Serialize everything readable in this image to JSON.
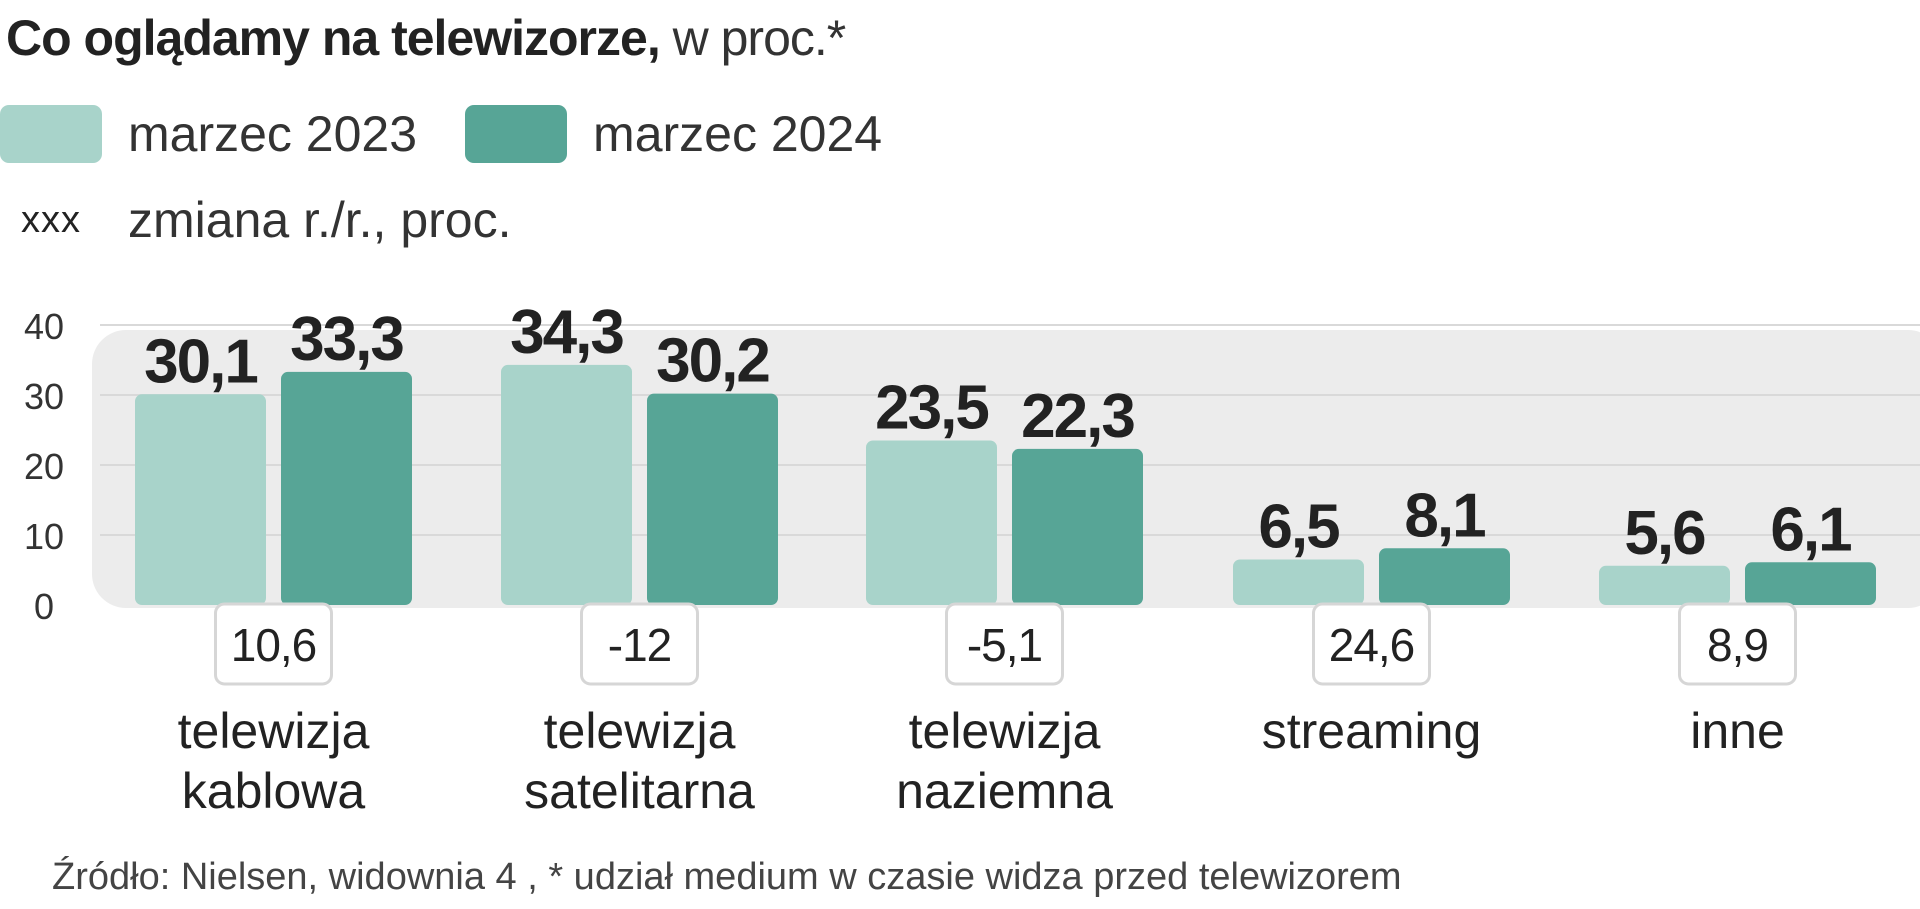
{
  "title": {
    "bold": "Co oglądamy na telewizorze,",
    "rest": " w proc.*"
  },
  "legend": {
    "series_a": "marzec 2023",
    "series_b": "marzec 2024",
    "change_marker": "xxx",
    "change_label": "zmiana r./r., proc."
  },
  "colors": {
    "series_a": "#a8d3ca",
    "series_b": "#57a596",
    "panel": "#ececec",
    "grid": "#d9d9d9"
  },
  "source": "Źródło: Nielsen, widownia 4 , * udział medium w czasie widza przed telewizorem",
  "chart_data": {
    "type": "bar",
    "ylim": [
      0,
      40
    ],
    "yticks": [
      "0",
      "10",
      "20",
      "30",
      "40"
    ],
    "categories": [
      [
        "telewizja",
        "kablowa"
      ],
      [
        "telewizja",
        "satelitarna"
      ],
      [
        "telewizja",
        "naziemna"
      ],
      [
        "streaming"
      ],
      [
        "inne"
      ]
    ],
    "series": [
      {
        "name": "marzec 2023",
        "values": [
          30.1,
          34.3,
          23.5,
          6.5,
          5.6
        ],
        "labels": [
          "30,1",
          "34,3",
          "23,5",
          "6,5",
          "5,6"
        ]
      },
      {
        "name": "marzec 2024",
        "values": [
          33.3,
          30.2,
          22.3,
          8.1,
          6.1
        ],
        "labels": [
          "33,3",
          "30,2",
          "22,3",
          "8,1",
          "6,1"
        ]
      }
    ],
    "change_yoy": [
      "10,6",
      "-12",
      "-5,1",
      "24,6",
      "8,9"
    ],
    "grid": true,
    "legend_position": "top-left"
  }
}
